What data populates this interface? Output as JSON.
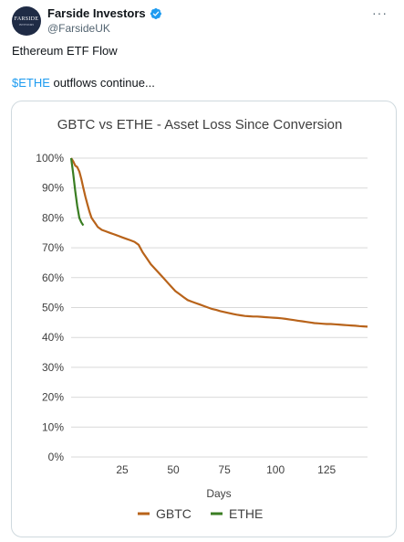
{
  "tweet": {
    "author": {
      "display_name": "Farside Investors",
      "handle": "@FarsideUK",
      "avatar_text": "FARSIDE",
      "avatar_subtext": "INVESTORS",
      "verified": true,
      "verified_color": "#1d9bf0"
    },
    "more_label": "···",
    "text_line1": "Ethereum ETF Flow",
    "cashtag": "$ETHE",
    "text_line2_rest": " outflows continue..."
  },
  "chart_data": {
    "type": "line",
    "title": "GBTC vs ETHE - Asset Loss Since Conversion",
    "xlabel": "Days",
    "ylabel": "",
    "xlim": [
      0,
      145
    ],
    "ylim": [
      0,
      1
    ],
    "x_ticks": [
      25,
      50,
      75,
      100,
      125
    ],
    "y_ticks": [
      0,
      0.1,
      0.2,
      0.3,
      0.4,
      0.5,
      0.6,
      0.7,
      0.8,
      0.9,
      1.0
    ],
    "y_tick_labels": [
      "0%",
      "10%",
      "20%",
      "30%",
      "40%",
      "50%",
      "60%",
      "70%",
      "80%",
      "90%",
      "100%"
    ],
    "grid": "horizontal",
    "legend_position": "bottom",
    "series": [
      {
        "name": "GBTC",
        "color": "#b8631a",
        "x": [
          0,
          1,
          2,
          3,
          4,
          5,
          6,
          7,
          8,
          9,
          10,
          11,
          12,
          13,
          15,
          17,
          19,
          21,
          23,
          25,
          27,
          29,
          31,
          33,
          35,
          37,
          39,
          41,
          43,
          45,
          47,
          49,
          51,
          53,
          55,
          57,
          59,
          61,
          63,
          65,
          67,
          69,
          71,
          73,
          75,
          77,
          79,
          81,
          83,
          85,
          87,
          89,
          91,
          93,
          95,
          97,
          99,
          101,
          103,
          105,
          107,
          109,
          111,
          113,
          115,
          117,
          119,
          121,
          123,
          125,
          127,
          129,
          131,
          133,
          135,
          137,
          139,
          141,
          143,
          145
        ],
        "values": [
          1.0,
          0.99,
          0.975,
          0.97,
          0.955,
          0.93,
          0.9,
          0.87,
          0.845,
          0.82,
          0.8,
          0.79,
          0.78,
          0.77,
          0.76,
          0.755,
          0.75,
          0.745,
          0.74,
          0.735,
          0.73,
          0.725,
          0.72,
          0.71,
          0.685,
          0.665,
          0.645,
          0.63,
          0.615,
          0.6,
          0.585,
          0.57,
          0.555,
          0.545,
          0.535,
          0.525,
          0.52,
          0.515,
          0.51,
          0.505,
          0.5,
          0.495,
          0.492,
          0.488,
          0.485,
          0.482,
          0.479,
          0.476,
          0.474,
          0.472,
          0.471,
          0.47,
          0.47,
          0.469,
          0.468,
          0.467,
          0.466,
          0.465,
          0.464,
          0.462,
          0.46,
          0.458,
          0.456,
          0.454,
          0.452,
          0.45,
          0.448,
          0.447,
          0.446,
          0.445,
          0.445,
          0.444,
          0.443,
          0.442,
          0.441,
          0.44,
          0.439,
          0.438,
          0.437,
          0.436
        ]
      },
      {
        "name": "ETHE",
        "color": "#3a7d22",
        "x": [
          0,
          1,
          2,
          3,
          4,
          5,
          6
        ],
        "values": [
          1.0,
          0.95,
          0.89,
          0.84,
          0.8,
          0.785,
          0.775
        ]
      }
    ]
  }
}
